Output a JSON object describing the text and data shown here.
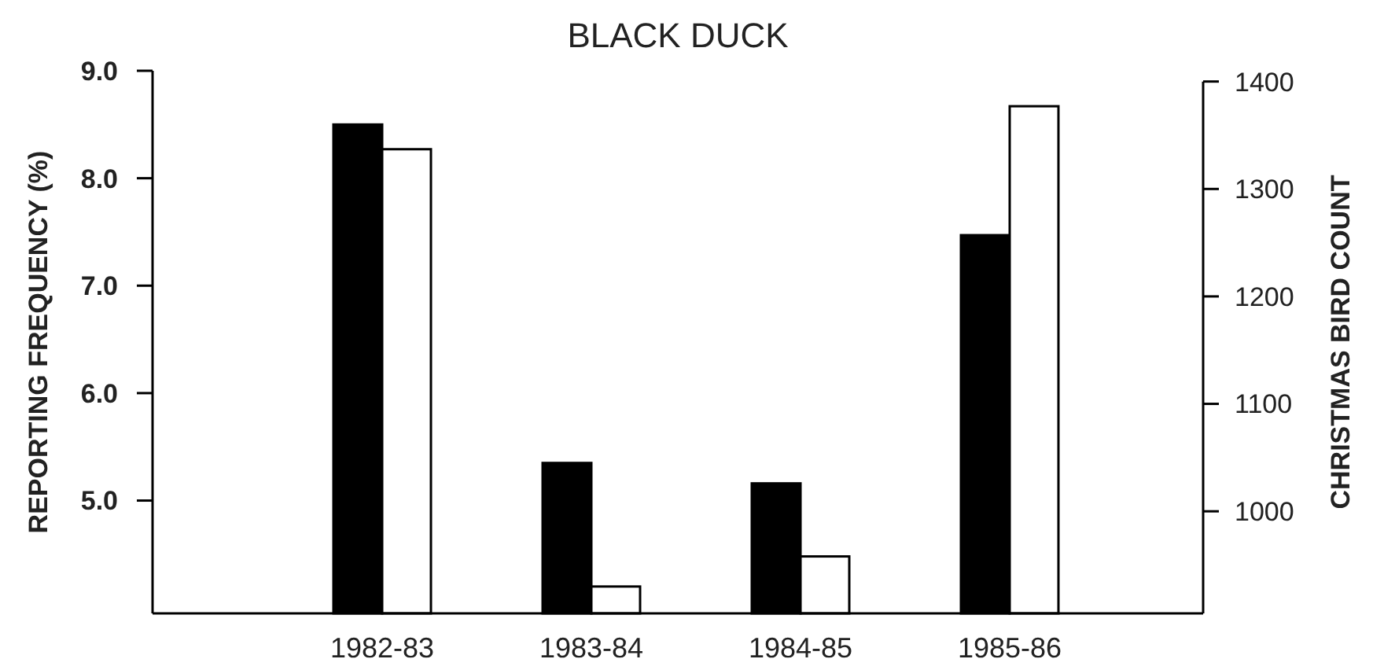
{
  "chart_data": {
    "type": "bar",
    "title": "BLACK DUCK",
    "ylabel": "REPORTING FREQUENCY (%)",
    "y2label": "CHRISTMAS BIRD COUNT",
    "categories": [
      "1982-83",
      "1983-84",
      "1984-85",
      "1985-86"
    ],
    "series": [
      {
        "color": "#000000",
        "values": [
          8.5,
          5.35,
          5.16,
          7.47
        ]
      },
      {
        "color": "#ffffff",
        "axis": "y2",
        "values": [
          1337,
          930,
          958,
          1377
        ]
      }
    ],
    "ylim": [
      3.95,
      9.0
    ],
    "yticks": [
      {
        "value": 5,
        "label": "5.0"
      },
      {
        "value": 6,
        "label": "6.0"
      },
      {
        "value": 7,
        "label": "7.0"
      },
      {
        "value": 8,
        "label": "8.0"
      },
      {
        "value": 9,
        "label": "9.0"
      }
    ],
    "y2lim": [
      905,
      1410
    ],
    "y2ticks": [
      1000,
      1100,
      1200,
      1300,
      1400
    ],
    "grid": false
  }
}
